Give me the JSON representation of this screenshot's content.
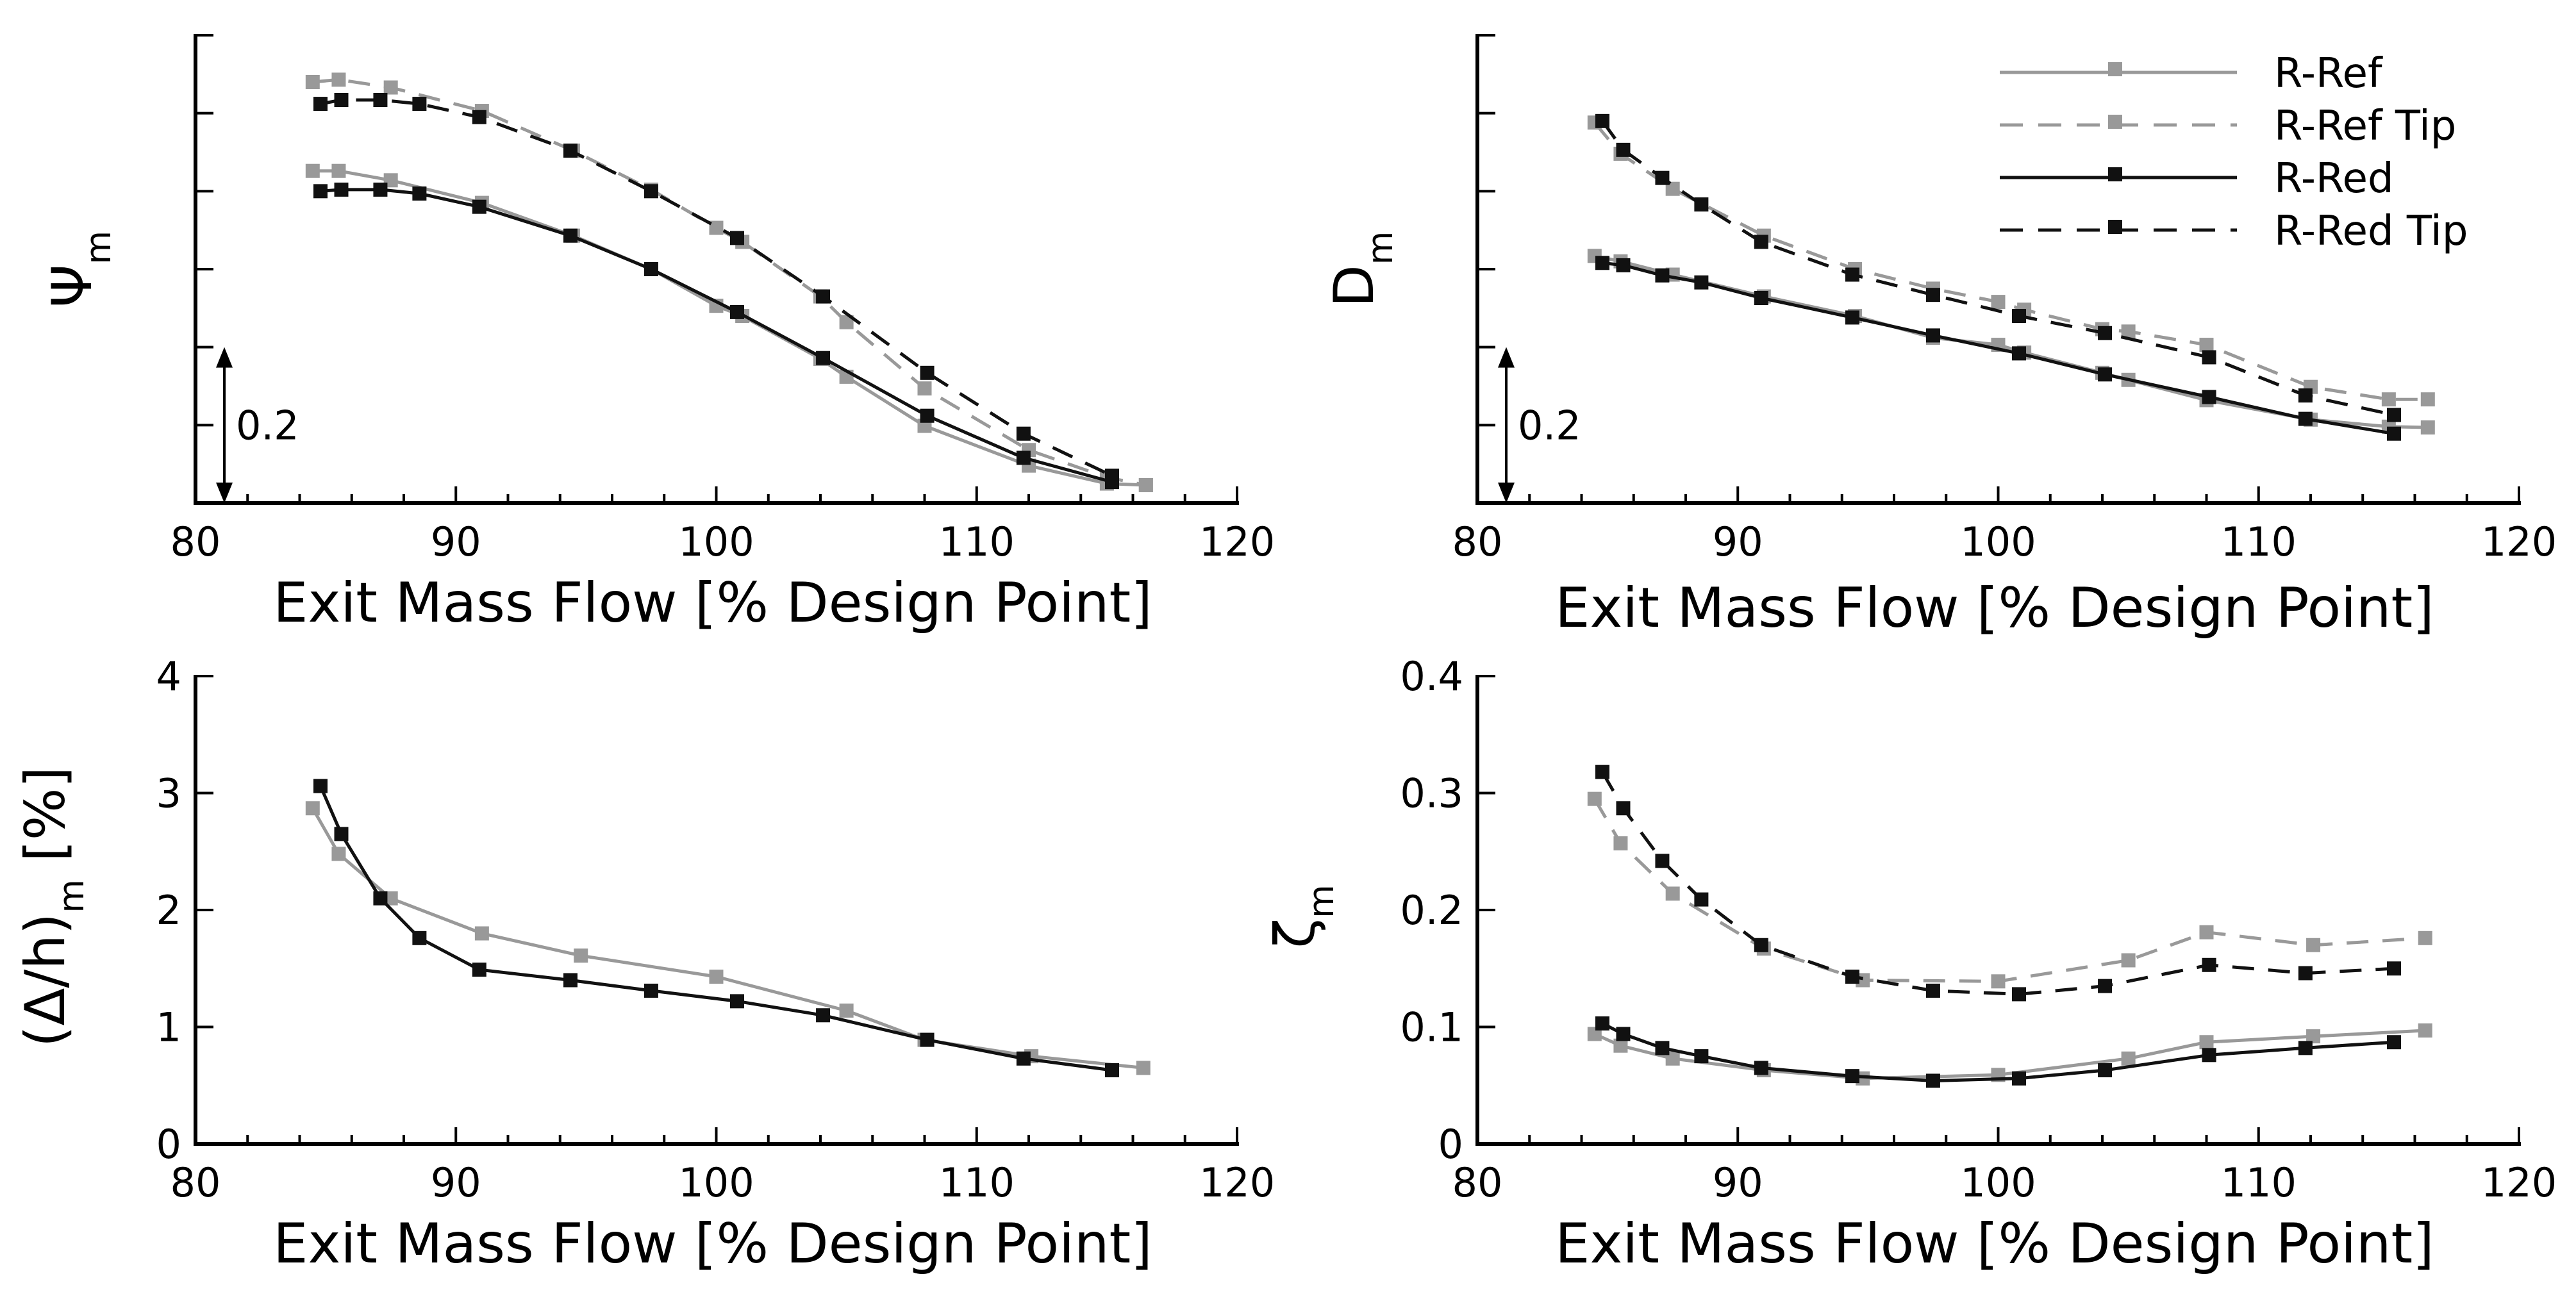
{
  "figure": {
    "legend": {
      "position": "top-right",
      "entries": [
        {
          "label": "R-Ref",
          "color": "#999999",
          "style": "solid"
        },
        {
          "label": "R-Ref Tip",
          "color": "#999999",
          "style": "dashed"
        },
        {
          "label": "R-Red",
          "color": "#111111",
          "style": "solid"
        },
        {
          "label": "R-Red Tip",
          "color": "#111111",
          "style": "dashed"
        }
      ]
    }
  },
  "chart_data": [
    {
      "id": "psi",
      "type": "line",
      "ylabel_main": "Ψ",
      "ylabel_sub": "m",
      "xlabel": "Exit Mass Flow [% Design Point]",
      "xlim": [
        80,
        120
      ],
      "xticks": [
        80,
        90,
        100,
        110,
        120
      ],
      "xtick_labels": [
        "80",
        "90",
        "100",
        "110",
        "120"
      ],
      "ylim": [
        0,
        0.6
      ],
      "yticks": [
        0,
        0.1,
        0.2,
        0.3,
        0.4,
        0.5,
        0.6
      ],
      "ytick_labels": [],
      "scale_bar": {
        "label": "0.2",
        "from": 0,
        "to": 0.2
      },
      "series": [
        {
          "name": "R-Ref",
          "color": "#999999",
          "dashed": false,
          "x": [
            84.5,
            85.5,
            87.5,
            91,
            94.5,
            97.5,
            100,
            101,
            104,
            105,
            108,
            112,
            115,
            116.5
          ],
          "y": [
            0.426,
            0.426,
            0.414,
            0.385,
            0.343,
            0.3,
            0.253,
            0.24,
            0.185,
            0.162,
            0.099,
            0.048,
            0.025,
            0.023
          ]
        },
        {
          "name": "R-Ref Tip",
          "color": "#999999",
          "dashed": true,
          "x": [
            84.5,
            85.5,
            87.5,
            91,
            94.5,
            97.5,
            100,
            101,
            104,
            105,
            108,
            112,
            115,
            116.5
          ],
          "y": [
            0.54,
            0.543,
            0.533,
            0.503,
            0.452,
            0.402,
            0.353,
            0.335,
            0.265,
            0.232,
            0.147,
            0.068,
            0.033,
            0.023
          ]
        },
        {
          "name": "R-Red",
          "color": "#111111",
          "dashed": false,
          "x": [
            84.8,
            85.6,
            87.1,
            88.6,
            90.9,
            94.4,
            97.5,
            100.8,
            104.1,
            108.1,
            111.8,
            115.2
          ],
          "y": [
            0.4,
            0.402,
            0.402,
            0.397,
            0.38,
            0.343,
            0.3,
            0.245,
            0.186,
            0.112,
            0.058,
            0.027
          ]
        },
        {
          "name": "R-Red Tip",
          "color": "#111111",
          "dashed": true,
          "x": [
            84.8,
            85.6,
            87.1,
            88.6,
            90.9,
            94.4,
            97.5,
            100.8,
            104.1,
            108.1,
            111.8,
            115.2
          ],
          "y": [
            0.512,
            0.517,
            0.517,
            0.512,
            0.495,
            0.452,
            0.4,
            0.34,
            0.265,
            0.167,
            0.089,
            0.035
          ]
        }
      ]
    },
    {
      "id": "diffusion",
      "type": "line",
      "ylabel_main": "D",
      "ylabel_sub": "m",
      "xlabel": "Exit Mass Flow [% Design Point]",
      "xlim": [
        80,
        120
      ],
      "xticks": [
        80,
        90,
        100,
        110,
        120
      ],
      "xtick_labels": [
        "80",
        "90",
        "100",
        "110",
        "120"
      ],
      "ylim": [
        0,
        0.6
      ],
      "yticks": [
        0,
        0.1,
        0.2,
        0.3,
        0.4,
        0.5,
        0.6
      ],
      "ytick_labels": [],
      "scale_bar": {
        "label": "0.2",
        "from": 0,
        "to": 0.2
      },
      "series": [
        {
          "name": "R-Ref",
          "color": "#999999",
          "dashed": false,
          "x": [
            84.5,
            85.5,
            87.5,
            91,
            94.5,
            97.5,
            100,
            101,
            104,
            105,
            108,
            112,
            115,
            116.5
          ],
          "y": [
            0.317,
            0.31,
            0.293,
            0.265,
            0.24,
            0.212,
            0.203,
            0.193,
            0.167,
            0.158,
            0.132,
            0.107,
            0.098,
            0.097
          ]
        },
        {
          "name": "R-Ref Tip",
          "color": "#999999",
          "dashed": true,
          "x": [
            84.5,
            85.5,
            87.5,
            91,
            94.5,
            97.5,
            100,
            101,
            104,
            105,
            108,
            112,
            115,
            116.5
          ],
          "y": [
            0.488,
            0.448,
            0.403,
            0.343,
            0.3,
            0.275,
            0.258,
            0.248,
            0.223,
            0.22,
            0.203,
            0.149,
            0.133,
            0.133
          ]
        },
        {
          "name": "R-Red",
          "color": "#111111",
          "dashed": false,
          "x": [
            84.8,
            85.6,
            87.1,
            88.6,
            90.9,
            94.4,
            97.5,
            100.8,
            104.1,
            108.1,
            111.8,
            115.2
          ],
          "y": [
            0.308,
            0.305,
            0.292,
            0.283,
            0.263,
            0.238,
            0.215,
            0.192,
            0.165,
            0.136,
            0.108,
            0.089
          ]
        },
        {
          "name": "R-Red Tip",
          "color": "#111111",
          "dashed": true,
          "x": [
            84.8,
            85.6,
            87.1,
            88.6,
            90.9,
            94.4,
            97.5,
            100.8,
            104.1,
            108.1,
            111.8,
            115.2
          ],
          "y": [
            0.49,
            0.453,
            0.417,
            0.383,
            0.335,
            0.293,
            0.267,
            0.24,
            0.218,
            0.187,
            0.138,
            0.113
          ]
        }
      ]
    },
    {
      "id": "blockage",
      "type": "line",
      "ylabel_main": "(Δ/h)",
      "ylabel_sub": "m",
      "ylabel_tail": " [%]",
      "xlabel": "Exit Mass Flow [% Design Point]",
      "xlim": [
        80,
        120
      ],
      "xticks": [
        80,
        90,
        100,
        110,
        120
      ],
      "xtick_labels": [
        "80",
        "90",
        "100",
        "110",
        "120"
      ],
      "ylim": [
        0,
        4
      ],
      "yticks": [
        0,
        1,
        2,
        3,
        4
      ],
      "ytick_labels": [
        "0",
        "1",
        "2",
        "3",
        "4"
      ],
      "series": [
        {
          "name": "R-Ref",
          "color": "#999999",
          "dashed": false,
          "x": [
            84.5,
            85.5,
            87.5,
            91,
            94.8,
            100,
            105,
            108,
            112.1,
            116.4
          ],
          "y": [
            2.87,
            2.48,
            2.1,
            1.8,
            1.61,
            1.43,
            1.14,
            0.89,
            0.75,
            0.65
          ]
        },
        {
          "name": "R-Red",
          "color": "#111111",
          "dashed": false,
          "x": [
            84.8,
            85.6,
            87.1,
            88.6,
            90.9,
            94.4,
            97.5,
            100.8,
            104.1,
            108.1,
            111.8,
            115.2
          ],
          "y": [
            3.06,
            2.65,
            2.1,
            1.76,
            1.49,
            1.4,
            1.31,
            1.22,
            1.1,
            0.89,
            0.73,
            0.63
          ]
        }
      ]
    },
    {
      "id": "loss",
      "type": "line",
      "ylabel_main": "ζ",
      "ylabel_sub": "m",
      "xlabel": "Exit Mass Flow [% Design Point]",
      "xlim": [
        80,
        120
      ],
      "xticks": [
        80,
        90,
        100,
        110,
        120
      ],
      "xtick_labels": [
        "80",
        "90",
        "100",
        "110",
        "120"
      ],
      "ylim": [
        0,
        0.4
      ],
      "yticks": [
        0,
        0.1,
        0.2,
        0.3,
        0.4
      ],
      "ytick_labels": [
        "0",
        "0.1",
        "0.2",
        "0.3",
        "0.4"
      ],
      "series": [
        {
          "name": "R-Ref",
          "color": "#999999",
          "dashed": false,
          "x": [
            84.5,
            85.5,
            87.5,
            91,
            94.8,
            100,
            105,
            108,
            112.1,
            116.4
          ],
          "y": [
            0.094,
            0.084,
            0.073,
            0.063,
            0.056,
            0.059,
            0.073,
            0.087,
            0.092,
            0.097
          ]
        },
        {
          "name": "R-Ref Tip",
          "color": "#999999",
          "dashed": true,
          "x": [
            84.5,
            85.5,
            87.5,
            91,
            94.8,
            100,
            105,
            108,
            112.1,
            116.4
          ],
          "y": [
            0.295,
            0.257,
            0.214,
            0.167,
            0.14,
            0.139,
            0.157,
            0.181,
            0.17,
            0.176
          ]
        },
        {
          "name": "R-Red",
          "color": "#111111",
          "dashed": false,
          "x": [
            84.8,
            85.6,
            87.1,
            88.6,
            90.9,
            94.4,
            97.5,
            100.8,
            104.1,
            108.1,
            111.8,
            115.2
          ],
          "y": [
            0.103,
            0.094,
            0.082,
            0.075,
            0.065,
            0.058,
            0.054,
            0.056,
            0.063,
            0.076,
            0.082,
            0.087
          ]
        },
        {
          "name": "R-Red Tip",
          "color": "#111111",
          "dashed": true,
          "x": [
            84.8,
            85.6,
            87.1,
            88.6,
            90.9,
            94.4,
            97.5,
            100.8,
            104.1,
            108.1,
            111.8,
            115.2
          ],
          "y": [
            0.318,
            0.287,
            0.242,
            0.209,
            0.17,
            0.143,
            0.131,
            0.128,
            0.135,
            0.153,
            0.146,
            0.15
          ]
        }
      ]
    }
  ]
}
